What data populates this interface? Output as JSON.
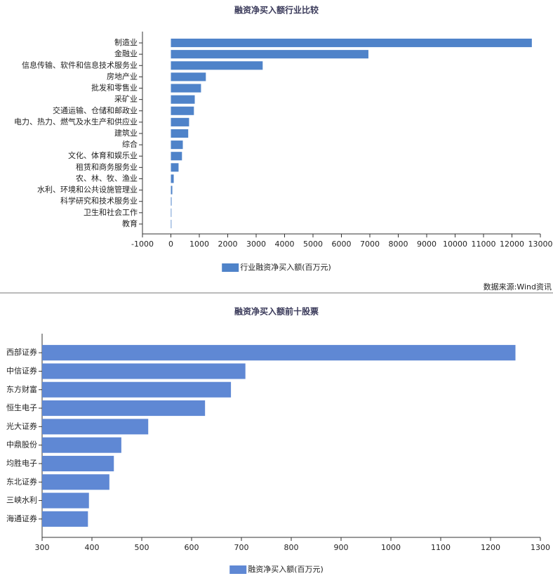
{
  "chart_data": [
    {
      "type": "bar",
      "orientation": "horizontal",
      "title": "融资净买入额行业比较",
      "categories": [
        "制造业",
        "金融业",
        "信息传输、软件和信息技术服务业",
        "房地产业",
        "批发和零售业",
        "采矿业",
        "交通运输、仓储和邮政业",
        "电力、热力、燃气及水生产和供应业",
        "建筑业",
        "综合",
        "文化、体育和娱乐业",
        "租赁和商务服务业",
        "农、林、牧、渔业",
        "水利、环境和公共设施管理业",
        "科学研究和技术服务业",
        "卫生和社会工作",
        "教育"
      ],
      "series": [
        {
          "name": "行业融资净买入额(百万元)",
          "color": "#4f83c9",
          "values": [
            12700,
            6950,
            3230,
            1230,
            1060,
            840,
            810,
            640,
            610,
            420,
            390,
            270,
            100,
            50,
            25,
            10,
            5
          ]
        }
      ],
      "xlim": [
        -1000,
        13000
      ],
      "xticks": [
        -1000,
        0,
        1000,
        2000,
        3000,
        4000,
        5000,
        6000,
        7000,
        8000,
        9000,
        10000,
        11000,
        12000,
        13000
      ],
      "source": "数据来源:Wind资讯"
    },
    {
      "type": "bar",
      "orientation": "horizontal",
      "title": "融资净买入额前十股票",
      "categories": [
        "西部证券",
        "中信证券",
        "东方财富",
        "恒生电子",
        "光大证券",
        "中鼎股份",
        "均胜电子",
        "东北证券",
        "三峡水利",
        "海通证券"
      ],
      "series": [
        {
          "name": "融资净买入额(百万元)",
          "color": "#5f88d4",
          "values": [
            1250,
            708,
            679,
            627,
            513,
            459,
            444,
            435,
            394,
            392
          ]
        }
      ],
      "xlim": [
        300,
        1300
      ],
      "xticks": [
        300,
        400,
        500,
        600,
        700,
        800,
        900,
        1000,
        1100,
        1200,
        1300
      ]
    }
  ]
}
